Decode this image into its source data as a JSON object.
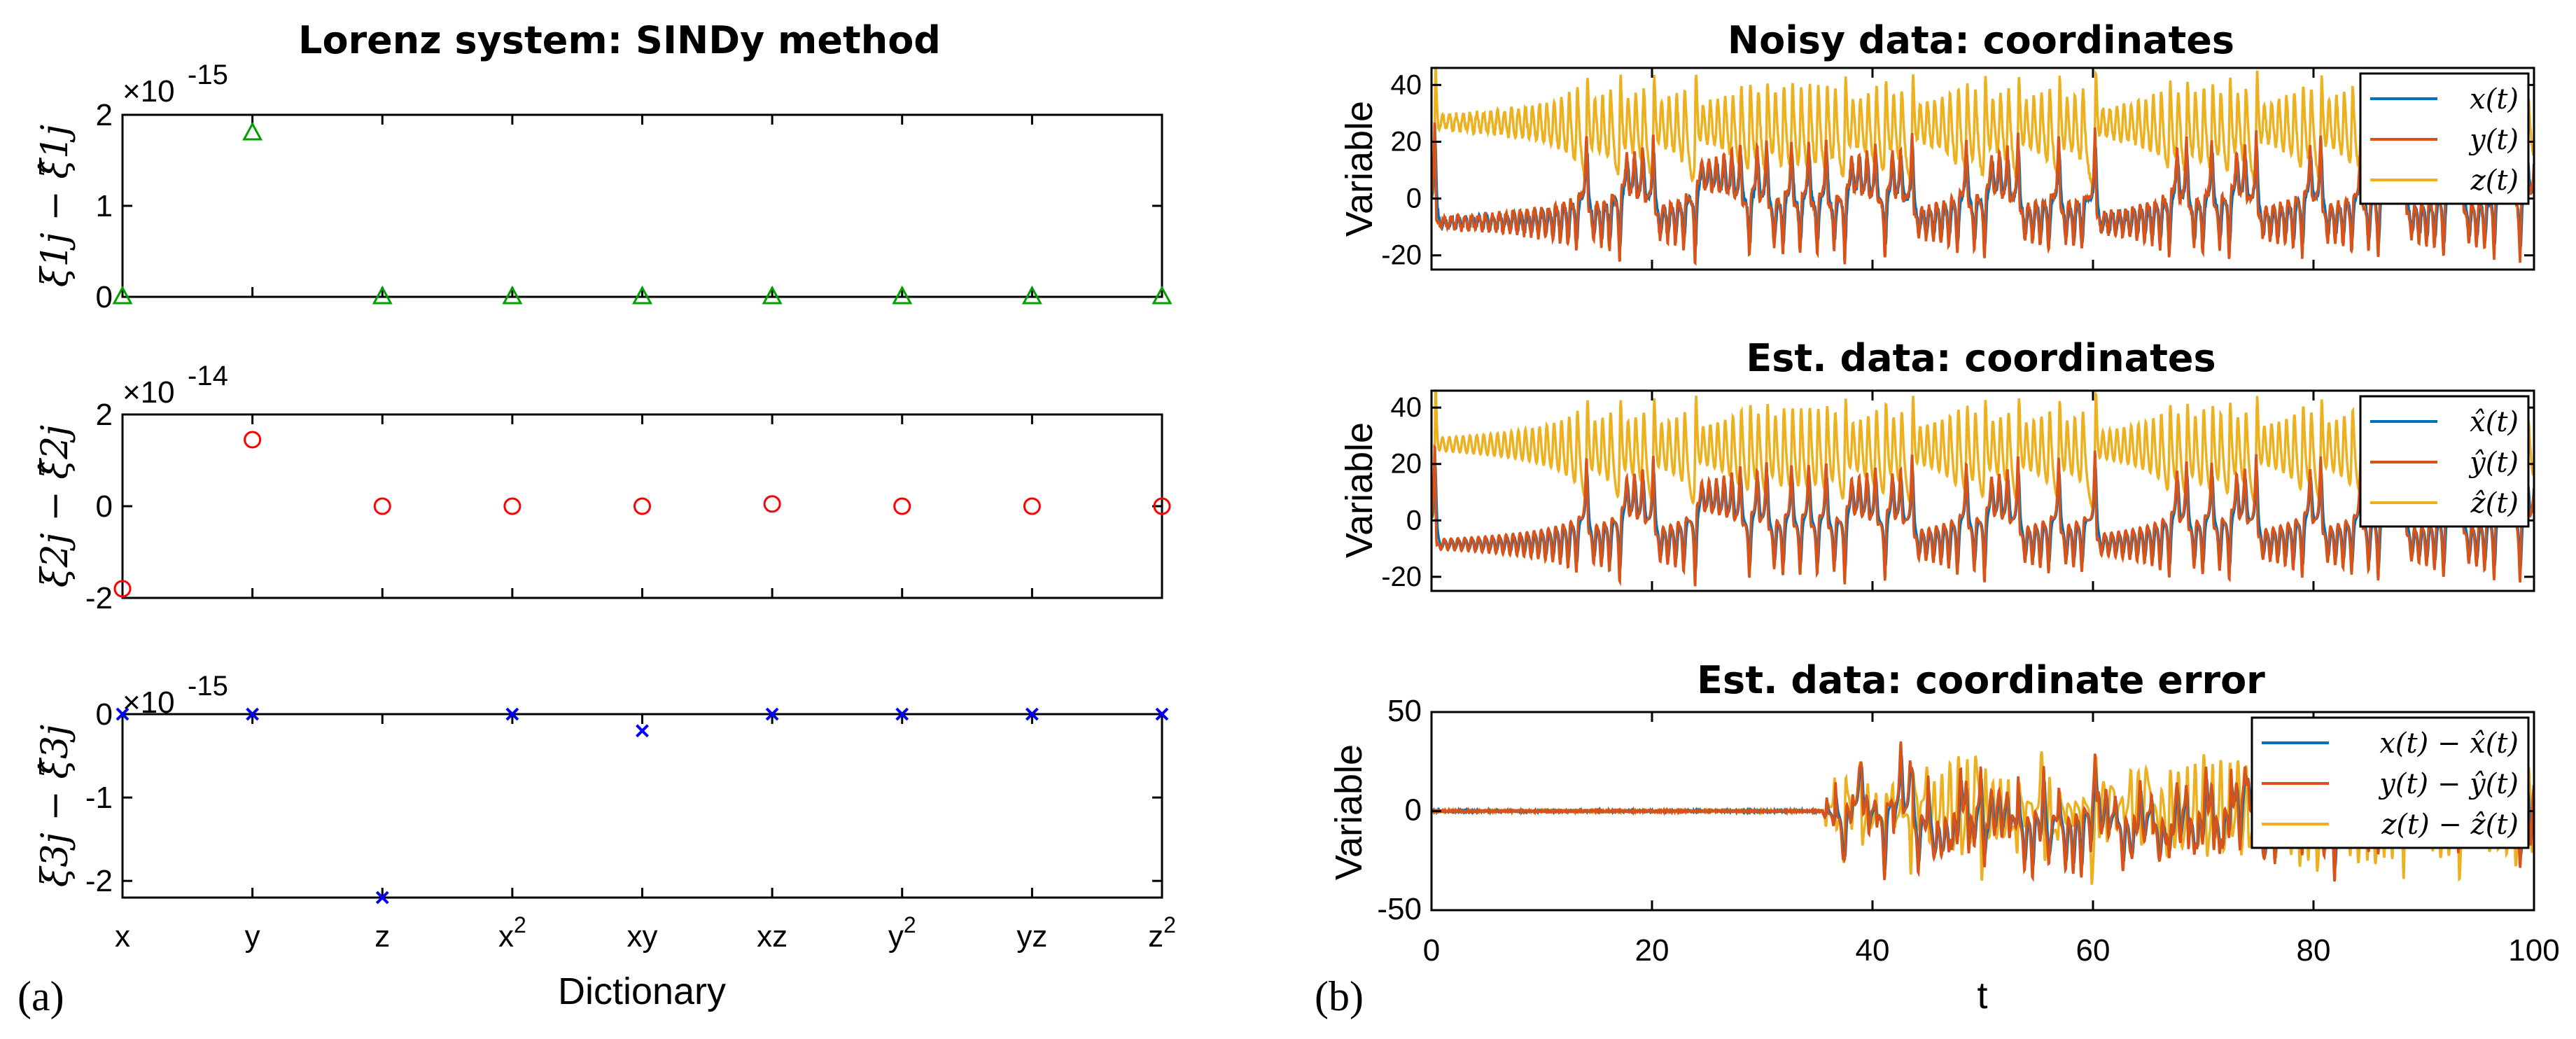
{
  "colors": {
    "green": "#00a000",
    "red": "#ff0000",
    "blue": "#0000ff",
    "line1": "#0072BD",
    "line2": "#D95319",
    "line3": "#EDB120"
  },
  "panel_labels": {
    "a": "(a)",
    "b": "(b)"
  },
  "chart_data": [
    {
      "type": "scatter",
      "title": "Lorenz system: SINDy method",
      "xlabel": "",
      "ylabel": "ξ1j − ξ̂1j",
      "exponent_label": "×10",
      "exponent": "-15",
      "categories": [
        "x",
        "y",
        "z",
        "x2",
        "xy",
        "xz",
        "y2",
        "yz",
        "z2"
      ],
      "values": [
        0,
        1.8,
        0,
        0,
        0,
        0,
        0,
        0,
        0
      ],
      "ylim": [
        0,
        2
      ],
      "yticks": [
        "0",
        "1",
        "2"
      ],
      "marker": "triangle"
    },
    {
      "type": "scatter",
      "title": "",
      "xlabel": "",
      "ylabel": "ξ2j − ξ̂2j",
      "exponent_label": "×10",
      "exponent": "-14",
      "categories": [
        "x",
        "y",
        "z",
        "x2",
        "xy",
        "xz",
        "y2",
        "yz",
        "z2"
      ],
      "values": [
        -1.8,
        1.45,
        0,
        0,
        0,
        0.05,
        0,
        0,
        0
      ],
      "ylim": [
        -2,
        2
      ],
      "yticks": [
        "-2",
        "0",
        "2"
      ],
      "marker": "circle"
    },
    {
      "type": "scatter",
      "title": "",
      "xlabel": "Dictionary",
      "ylabel": "ξ3j − ξ̂3j",
      "exponent_label": "×10",
      "exponent": "-15",
      "categories": [
        "x",
        "y",
        "z",
        "x2",
        "xy",
        "xz",
        "y2",
        "yz",
        "z2"
      ],
      "xtick_labels": [
        {
          "base": "x",
          "sup": ""
        },
        {
          "base": "y",
          "sup": ""
        },
        {
          "base": "z",
          "sup": ""
        },
        {
          "base": "x",
          "sup": "2"
        },
        {
          "base": "xy",
          "sup": ""
        },
        {
          "base": "xz",
          "sup": ""
        },
        {
          "base": "y",
          "sup": "2"
        },
        {
          "base": "yz",
          "sup": ""
        },
        {
          "base": "z",
          "sup": "2"
        }
      ],
      "values": [
        0,
        0,
        -2.2,
        0,
        -0.2,
        0,
        0,
        0,
        0
      ],
      "ylim": [
        -2.2,
        0
      ],
      "yticks": [
        "-2",
        "-1",
        "0"
      ],
      "marker": "x"
    },
    {
      "type": "line",
      "title": "Noisy data: coordinates",
      "xlabel": "",
      "ylabel": "Variable",
      "xlim": [
        0,
        100
      ],
      "ylim": [
        -25,
        46
      ],
      "yticks": [
        "-20",
        "0",
        "20",
        "40"
      ],
      "series": [
        {
          "name": "x(t)",
          "label": "x(t)"
        },
        {
          "name": "y(t)",
          "label": "y(t)"
        },
        {
          "name": "z(t)",
          "label": "z(t)"
        }
      ],
      "legend_position": "top-right"
    },
    {
      "type": "line",
      "title": "Est. data: coordinates",
      "xlabel": "",
      "ylabel": "Variable",
      "xlim": [
        0,
        100
      ],
      "ylim": [
        -25,
        46
      ],
      "yticks": [
        "-20",
        "0",
        "20",
        "40"
      ],
      "series": [
        {
          "name": "x̂(t)",
          "label": "x̂(t)"
        },
        {
          "name": "ŷ(t)",
          "label": "ŷ(t)"
        },
        {
          "name": "ẑ(t)",
          "label": "ẑ(t)"
        }
      ],
      "legend_position": "top-right"
    },
    {
      "type": "line",
      "title": "Est. data: coordinate error",
      "xlabel": "t",
      "ylabel": "Variable",
      "xlim": [
        0,
        100
      ],
      "ylim": [
        -50,
        50
      ],
      "xticks": [
        "0",
        "20",
        "40",
        "60",
        "80",
        "100"
      ],
      "yticks": [
        "-50",
        "0",
        "50"
      ],
      "series": [
        {
          "name": "x(t) − x̂(t)",
          "label": "x(t) − x̂(t)"
        },
        {
          "name": "y(t) − ŷ(t)",
          "label": "y(t) − ŷ(t)"
        },
        {
          "name": "z(t) − ẑ(t)",
          "label": "z(t) − ẑ(t)"
        }
      ],
      "legend_position": "top-right"
    }
  ]
}
